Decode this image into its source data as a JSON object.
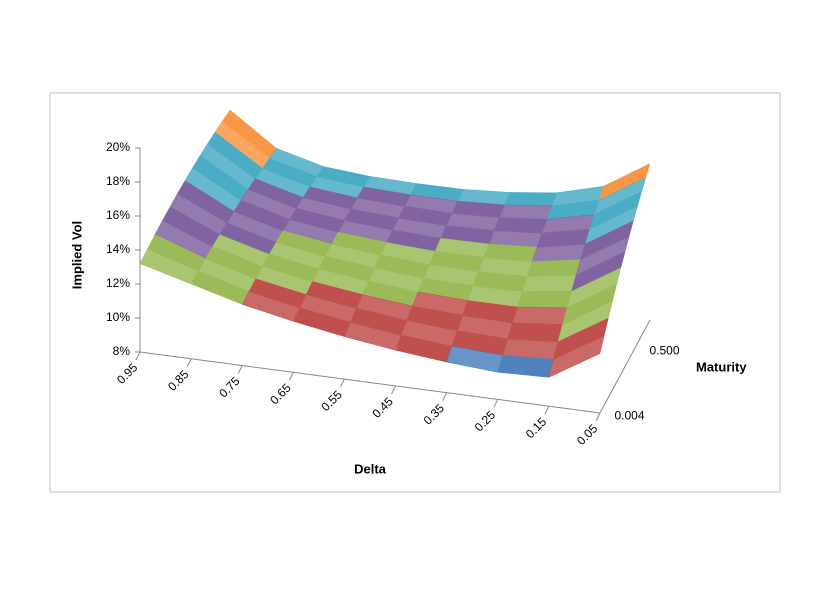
{
  "chart_data": {
    "type": "surface",
    "y_label": "Implied Vol",
    "x_label": "Delta",
    "z_label": "Maturity",
    "categories": [
      "0.95",
      "0.85",
      "0.75",
      "0.65",
      "0.55",
      "0.45",
      "0.35",
      "0.25",
      "0.15",
      "0.05"
    ],
    "series": [
      {
        "name": "0.004",
        "values": [
          13.2,
          12.4,
          11.6,
          11.0,
          10.5,
          10.1,
          9.8,
          9.6,
          9.7,
          11.5
        ]
      },
      {
        "name": "0.500",
        "values": [
          20.5,
          18.0,
          17.0,
          16.6,
          16.4,
          16.3,
          16.4,
          16.7,
          17.5,
          19.5
        ]
      }
    ],
    "ylim": [
      8,
      20
    ],
    "yticks": [
      {
        "value": 8,
        "label": "8%"
      },
      {
        "value": 10,
        "label": "10%"
      },
      {
        "value": 12,
        "label": "12%"
      },
      {
        "value": 14,
        "label": "14%"
      },
      {
        "value": 16,
        "label": "16%"
      },
      {
        "value": 18,
        "label": "18%"
      },
      {
        "value": 20,
        "label": "20%"
      }
    ],
    "band_colors": [
      "#4f81bd",
      "#c0504d",
      "#9bbb59",
      "#8064a2",
      "#4bacc6",
      "#f79646"
    ]
  }
}
